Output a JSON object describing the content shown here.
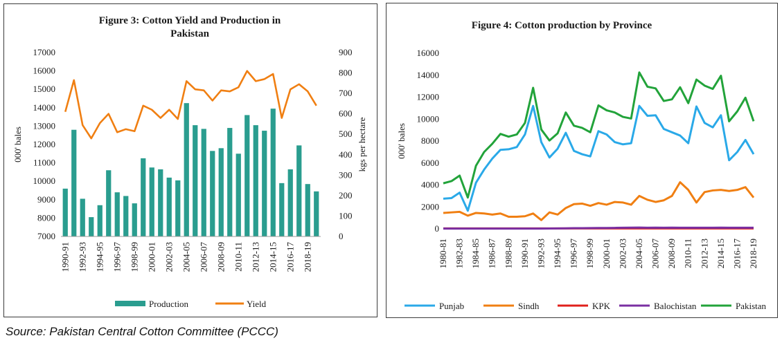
{
  "source_note": "Source: Pakistan Central Cotton Committee (PCCC)",
  "colors": {
    "production": "#2a9d8f",
    "yield": "#f07f12",
    "punjab": "#2aa9e8",
    "sindh": "#f07f12",
    "kpk": "#e0201b",
    "balochistan": "#7a2fa2",
    "pakistan": "#22a33a"
  },
  "chart_data": [
    {
      "type": "bar",
      "title_lines": [
        "Figure 3: Cotton Yield and Production in",
        "Pakistan"
      ],
      "ylabel": "000' bales",
      "y2label": "kgs per hectare",
      "ylim": [
        7000,
        17000
      ],
      "y2lim": [
        0,
        900
      ],
      "yticks": [
        7000,
        8000,
        9000,
        10000,
        11000,
        12000,
        13000,
        14000,
        15000,
        16000,
        17000
      ],
      "y2ticks": [
        0,
        100,
        200,
        300,
        400,
        500,
        600,
        700,
        800,
        900
      ],
      "categories": [
        "1990-91",
        "1991-92",
        "1992-93",
        "1993-94",
        "1994-95",
        "1995-96",
        "1996-97",
        "1997-98",
        "1998-99",
        "1999-00",
        "2000-01",
        "2001-02",
        "2002-03",
        "2003-04",
        "2004-05",
        "2005-06",
        "2006-07",
        "2007-08",
        "2008-09",
        "2009-10",
        "2010-11",
        "2011-12",
        "2012-13",
        "2013-14",
        "2014-15",
        "2015-16",
        "2016-17",
        "2017-18",
        "2018-19",
        "2019-20"
      ],
      "tick_labels": [
        "1990-91",
        "",
        "1992-93",
        "",
        "1994-95",
        "",
        "1996-97",
        "",
        "1998-99",
        "",
        "2000-01",
        "",
        "2002-03",
        "",
        "2004-05",
        "",
        "2006-07",
        "",
        "2008-09",
        "",
        "2010-11",
        "",
        "2012-13",
        "",
        "2014-15",
        "",
        "2016-17",
        "",
        "2018-19",
        ""
      ],
      "series": [
        {
          "name": "Production",
          "type": "bar",
          "axis": "left",
          "values": [
            9600,
            12800,
            9050,
            8050,
            8700,
            10600,
            9400,
            9200,
            8800,
            11250,
            10750,
            10650,
            10200,
            10050,
            14250,
            13050,
            12850,
            11650,
            11800,
            12900,
            11500,
            13600,
            13050,
            12750,
            13950,
            9900,
            10650,
            11950,
            9850,
            9450
          ]
        },
        {
          "name": "Yield",
          "type": "line",
          "axis": "right",
          "values": [
            610,
            765,
            545,
            480,
            555,
            600,
            510,
            525,
            515,
            640,
            620,
            580,
            620,
            575,
            760,
            720,
            715,
            665,
            715,
            710,
            730,
            810,
            760,
            770,
            795,
            580,
            720,
            745,
            710,
            640
          ]
        }
      ],
      "legend_position": "bottom"
    },
    {
      "type": "line",
      "title": "Figure 4: Cotton production by Province",
      "ylabel": "000' bales",
      "ylim": [
        0,
        16000
      ],
      "yticks": [
        0,
        2000,
        4000,
        6000,
        8000,
        10000,
        12000,
        14000,
        16000
      ],
      "categories": [
        "1980-81",
        "1981-82",
        "1982-83",
        "1983-84",
        "1984-85",
        "1985-86",
        "1986-87",
        "1987-88",
        "1988-89",
        "1989-90",
        "1990-91",
        "1991-92",
        "1992-93",
        "1993-94",
        "1994-95",
        "1995-96",
        "1996-97",
        "1997-98",
        "1998-99",
        "1999-00",
        "2000-01",
        "2001-02",
        "2002-03",
        "2003-04",
        "2004-05",
        "2005-06",
        "2006-07",
        "2007-08",
        "2008-09",
        "2009-10",
        "2010-11",
        "2011-12",
        "2012-13",
        "2013-14",
        "2014-15",
        "2015-16",
        "2016-17",
        "2017-18",
        "2018-19"
      ],
      "tick_labels": [
        "1980-81",
        "",
        "1982-83",
        "",
        "1984-85",
        "",
        "1986-87",
        "",
        "1988-89",
        "",
        "1990-91",
        "",
        "1992-93",
        "",
        "1994-95",
        "",
        "1996-97",
        "",
        "1998-99",
        "",
        "2000-01",
        "",
        "2002-03",
        "",
        "2004-05",
        "",
        "2006-07",
        "",
        "2008-09",
        "",
        "2010-11",
        "",
        "2012-13",
        "",
        "2014-15",
        "",
        "2016-17",
        "",
        "2018-19"
      ],
      "series": [
        {
          "name": "Punjab",
          "values": [
            2750,
            2800,
            3300,
            1650,
            4200,
            5400,
            6400,
            7200,
            7250,
            7450,
            8600,
            11200,
            7900,
            6500,
            7300,
            8750,
            7100,
            6800,
            6600,
            8900,
            8600,
            7900,
            7700,
            7800,
            11200,
            10300,
            10350,
            9100,
            8800,
            8500,
            7800,
            11150,
            9650,
            9250,
            10350,
            6250,
            7000,
            8100,
            6800
          ]
        },
        {
          "name": "Sindh",
          "values": [
            1450,
            1500,
            1550,
            1200,
            1450,
            1400,
            1300,
            1400,
            1100,
            1100,
            1150,
            1400,
            800,
            1500,
            1300,
            1900,
            2250,
            2300,
            2100,
            2350,
            2200,
            2450,
            2400,
            2200,
            3000,
            2650,
            2450,
            2600,
            3000,
            4250,
            3550,
            2400,
            3350,
            3500,
            3550,
            3450,
            3550,
            3800,
            2850
          ]
        },
        {
          "name": "KPK",
          "values": [
            40,
            40,
            40,
            40,
            40,
            40,
            40,
            40,
            40,
            40,
            40,
            40,
            40,
            40,
            40,
            40,
            40,
            40,
            40,
            40,
            40,
            40,
            40,
            40,
            40,
            40,
            40,
            40,
            40,
            40,
            40,
            40,
            40,
            40,
            40,
            40,
            40,
            40,
            40
          ]
        },
        {
          "name": "Balochistan",
          "values": [
            20,
            20,
            20,
            20,
            20,
            20,
            20,
            20,
            20,
            20,
            20,
            20,
            20,
            30,
            40,
            50,
            60,
            60,
            70,
            80,
            80,
            90,
            100,
            110,
            120,
            100,
            110,
            100,
            110,
            100,
            100,
            100,
            100,
            100,
            110,
            100,
            100,
            100,
            100
          ]
        },
        {
          "name": "Pakistan",
          "values": [
            4150,
            4350,
            4850,
            2850,
            5750,
            7000,
            7750,
            8650,
            8400,
            8600,
            9650,
            12850,
            9050,
            8050,
            8700,
            10600,
            9400,
            9200,
            8800,
            11250,
            10800,
            10600,
            10200,
            10050,
            14250,
            12950,
            12800,
            11650,
            11800,
            12900,
            11450,
            13600,
            13050,
            12750,
            13950,
            9800,
            10700,
            11950,
            9800
          ]
        }
      ],
      "legend_position": "bottom"
    }
  ]
}
